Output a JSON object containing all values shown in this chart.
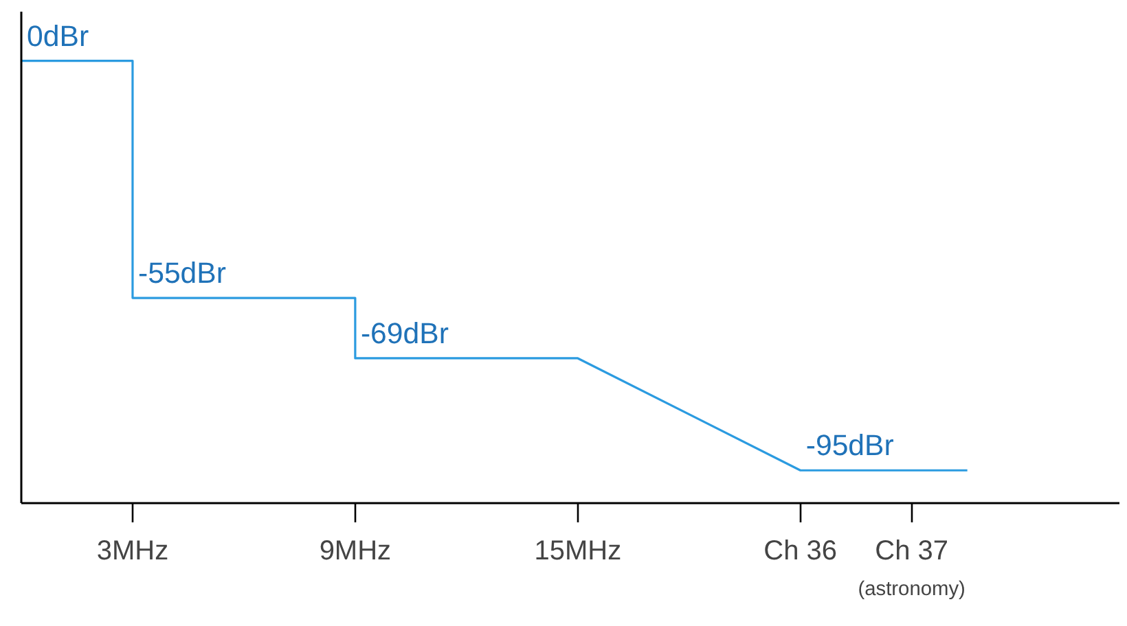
{
  "chart_data": {
    "type": "line",
    "x": [
      0,
      3,
      3,
      9,
      9,
      15,
      21,
      25.5
    ],
    "series": [
      {
        "color": "#2b9be0",
        "values": [
          0,
          0,
          -55,
          -55,
          -69,
          -69,
          -95,
          -95
        ],
        "value_labels": [
          "0dBr",
          null,
          "-55dBr",
          null,
          "-69dBr",
          null,
          "-95dBr",
          null
        ]
      }
    ],
    "xlim": [
      0,
      29.6
    ],
    "xticks": [
      {
        "value": 3,
        "label": "3MHz"
      },
      {
        "value": 9,
        "label": "9MHz"
      },
      {
        "value": 15,
        "label": "15MHz"
      },
      {
        "value": 21,
        "label": "Ch 36"
      },
      {
        "value": 24,
        "label": "Ch 37"
      }
    ],
    "annotations": [
      "(astronomy)"
    ],
    "tick_labels": "x",
    "grid": false,
    "marker": "none",
    "line_style": "solid"
  }
}
